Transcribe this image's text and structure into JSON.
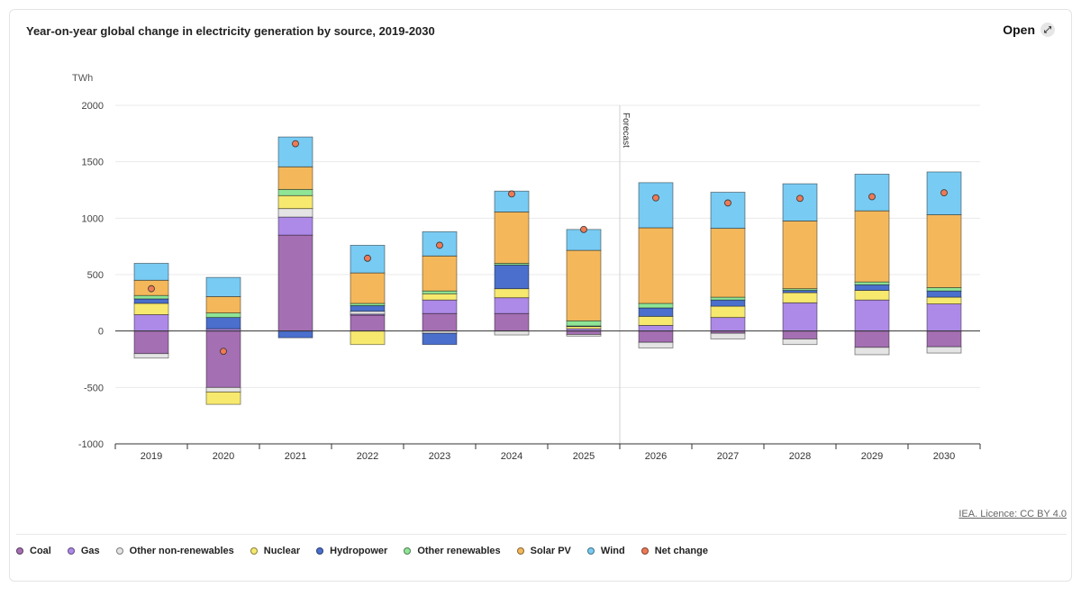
{
  "title": "Year-on-year global change in electricity generation by source, 2019-2030",
  "open_label": "Open",
  "open_icon": "expand-arrows-icon",
  "licence": "IEA. Licence: CC BY 4.0",
  "chart_data": {
    "type": "bar",
    "stacked": true,
    "title": "Year-on-year global change in electricity generation by source, 2019-2030",
    "ylabel": "TWh",
    "ylim": [
      -1000,
      2000
    ],
    "yticks": [
      2000,
      1500,
      1000,
      500,
      0,
      -500,
      -1000
    ],
    "grid": true,
    "legend_position": "bottom",
    "annotation": "Forecast",
    "categories": [
      "2019",
      "2020",
      "2021",
      "2022",
      "2023",
      "2024",
      "2025",
      "2026",
      "2027",
      "2028",
      "2029",
      "2030"
    ],
    "series": [
      {
        "name": "Coal",
        "color": "#a56fb3",
        "values": [
          -200,
          -500,
          850,
          140,
          155,
          155,
          -30,
          -100,
          -20,
          -70,
          -145,
          -140
        ]
      },
      {
        "name": "Gas",
        "color": "#ad89e8",
        "values": [
          145,
          20,
          160,
          10,
          120,
          140,
          20,
          50,
          120,
          250,
          275,
          240
        ]
      },
      {
        "name": "Other non-renewables",
        "color": "#e4e4e4",
        "values": [
          -40,
          -40,
          75,
          25,
          -20,
          -35,
          -15,
          -50,
          -50,
          -50,
          -65,
          -55
        ]
      },
      {
        "name": "Nuclear",
        "color": "#f7e96e",
        "values": [
          100,
          -110,
          115,
          -120,
          55,
          80,
          20,
          80,
          100,
          90,
          85,
          60
        ]
      },
      {
        "name": "Hydropower",
        "color": "#4a6fcd",
        "values": [
          40,
          100,
          -60,
          50,
          -100,
          210,
          5,
          75,
          55,
          20,
          50,
          55
        ]
      },
      {
        "name": "Other renewables",
        "color": "#8ee596",
        "values": [
          30,
          40,
          55,
          20,
          25,
          15,
          45,
          40,
          25,
          15,
          25,
          30
        ]
      },
      {
        "name": "Solar PV",
        "color": "#f4b85b",
        "values": [
          135,
          145,
          200,
          270,
          310,
          455,
          625,
          670,
          610,
          600,
          630,
          645
        ]
      },
      {
        "name": "Wind",
        "color": "#78cbf3",
        "values": [
          150,
          170,
          265,
          245,
          215,
          185,
          185,
          400,
          320,
          330,
          325,
          380
        ]
      }
    ],
    "net_change": {
      "name": "Net change",
      "color": "#ee7a55",
      "values": [
        375,
        -180,
        1660,
        645,
        760,
        1215,
        900,
        1180,
        1135,
        1175,
        1190,
        1225
      ]
    }
  }
}
